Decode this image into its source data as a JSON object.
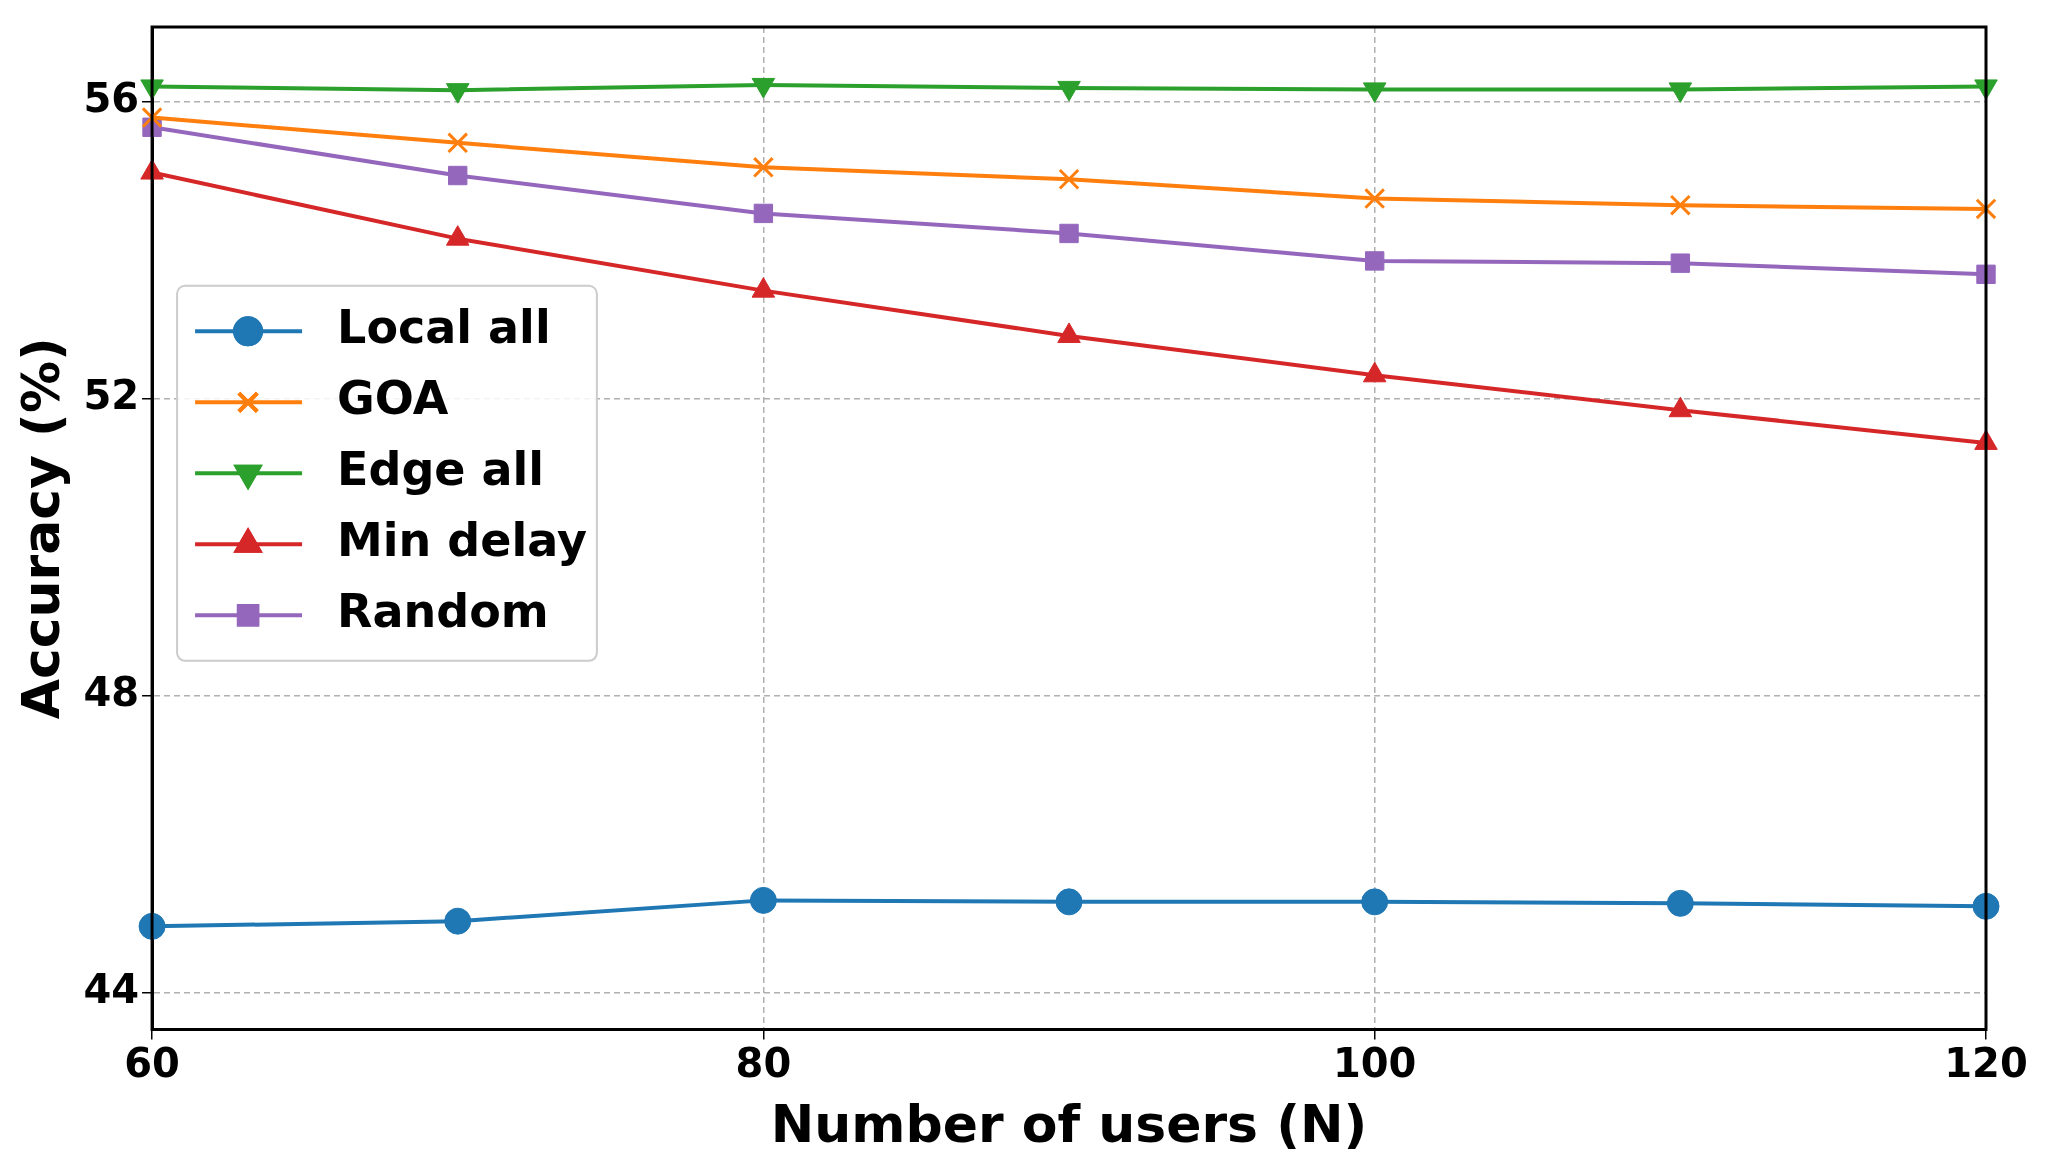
{
  "chart_data": {
    "type": "line",
    "xlabel": "Number of users (N)",
    "ylabel": "Accuracy (%)",
    "x": [
      60,
      70,
      80,
      90,
      100,
      110,
      120
    ],
    "xlim": [
      60,
      120
    ],
    "xticks": [
      60,
      80,
      100,
      120
    ],
    "ylim": [
      43.5,
      57
    ],
    "yticks": [
      44,
      48,
      52,
      56
    ],
    "grid": true,
    "legend": "left",
    "line_style": "solid",
    "series": [
      {
        "name": "Local all",
        "color": "#1f77b4",
        "marker": "circle",
        "values": [
          44.89,
          44.96,
          45.24,
          45.22,
          45.22,
          45.2,
          45.16
        ]
      },
      {
        "name": "GOA",
        "color": "#ff7f0e",
        "marker": "cross",
        "values": [
          55.78,
          55.44,
          55.11,
          54.95,
          54.69,
          54.6,
          54.55
        ]
      },
      {
        "name": "Edge all",
        "color": "#2ca02c",
        "marker": "triangle-down",
        "values": [
          56.2,
          56.15,
          56.22,
          56.18,
          56.16,
          56.16,
          56.2
        ]
      },
      {
        "name": "Min delay",
        "color": "#d62728",
        "marker": "triangle",
        "values": [
          55.04,
          54.15,
          53.45,
          52.84,
          52.31,
          51.84,
          51.4
        ]
      },
      {
        "name": "Random",
        "color": "#9467bd",
        "marker": "square",
        "values": [
          55.65,
          55.0,
          54.49,
          54.22,
          53.85,
          53.82,
          53.67
        ]
      }
    ]
  }
}
